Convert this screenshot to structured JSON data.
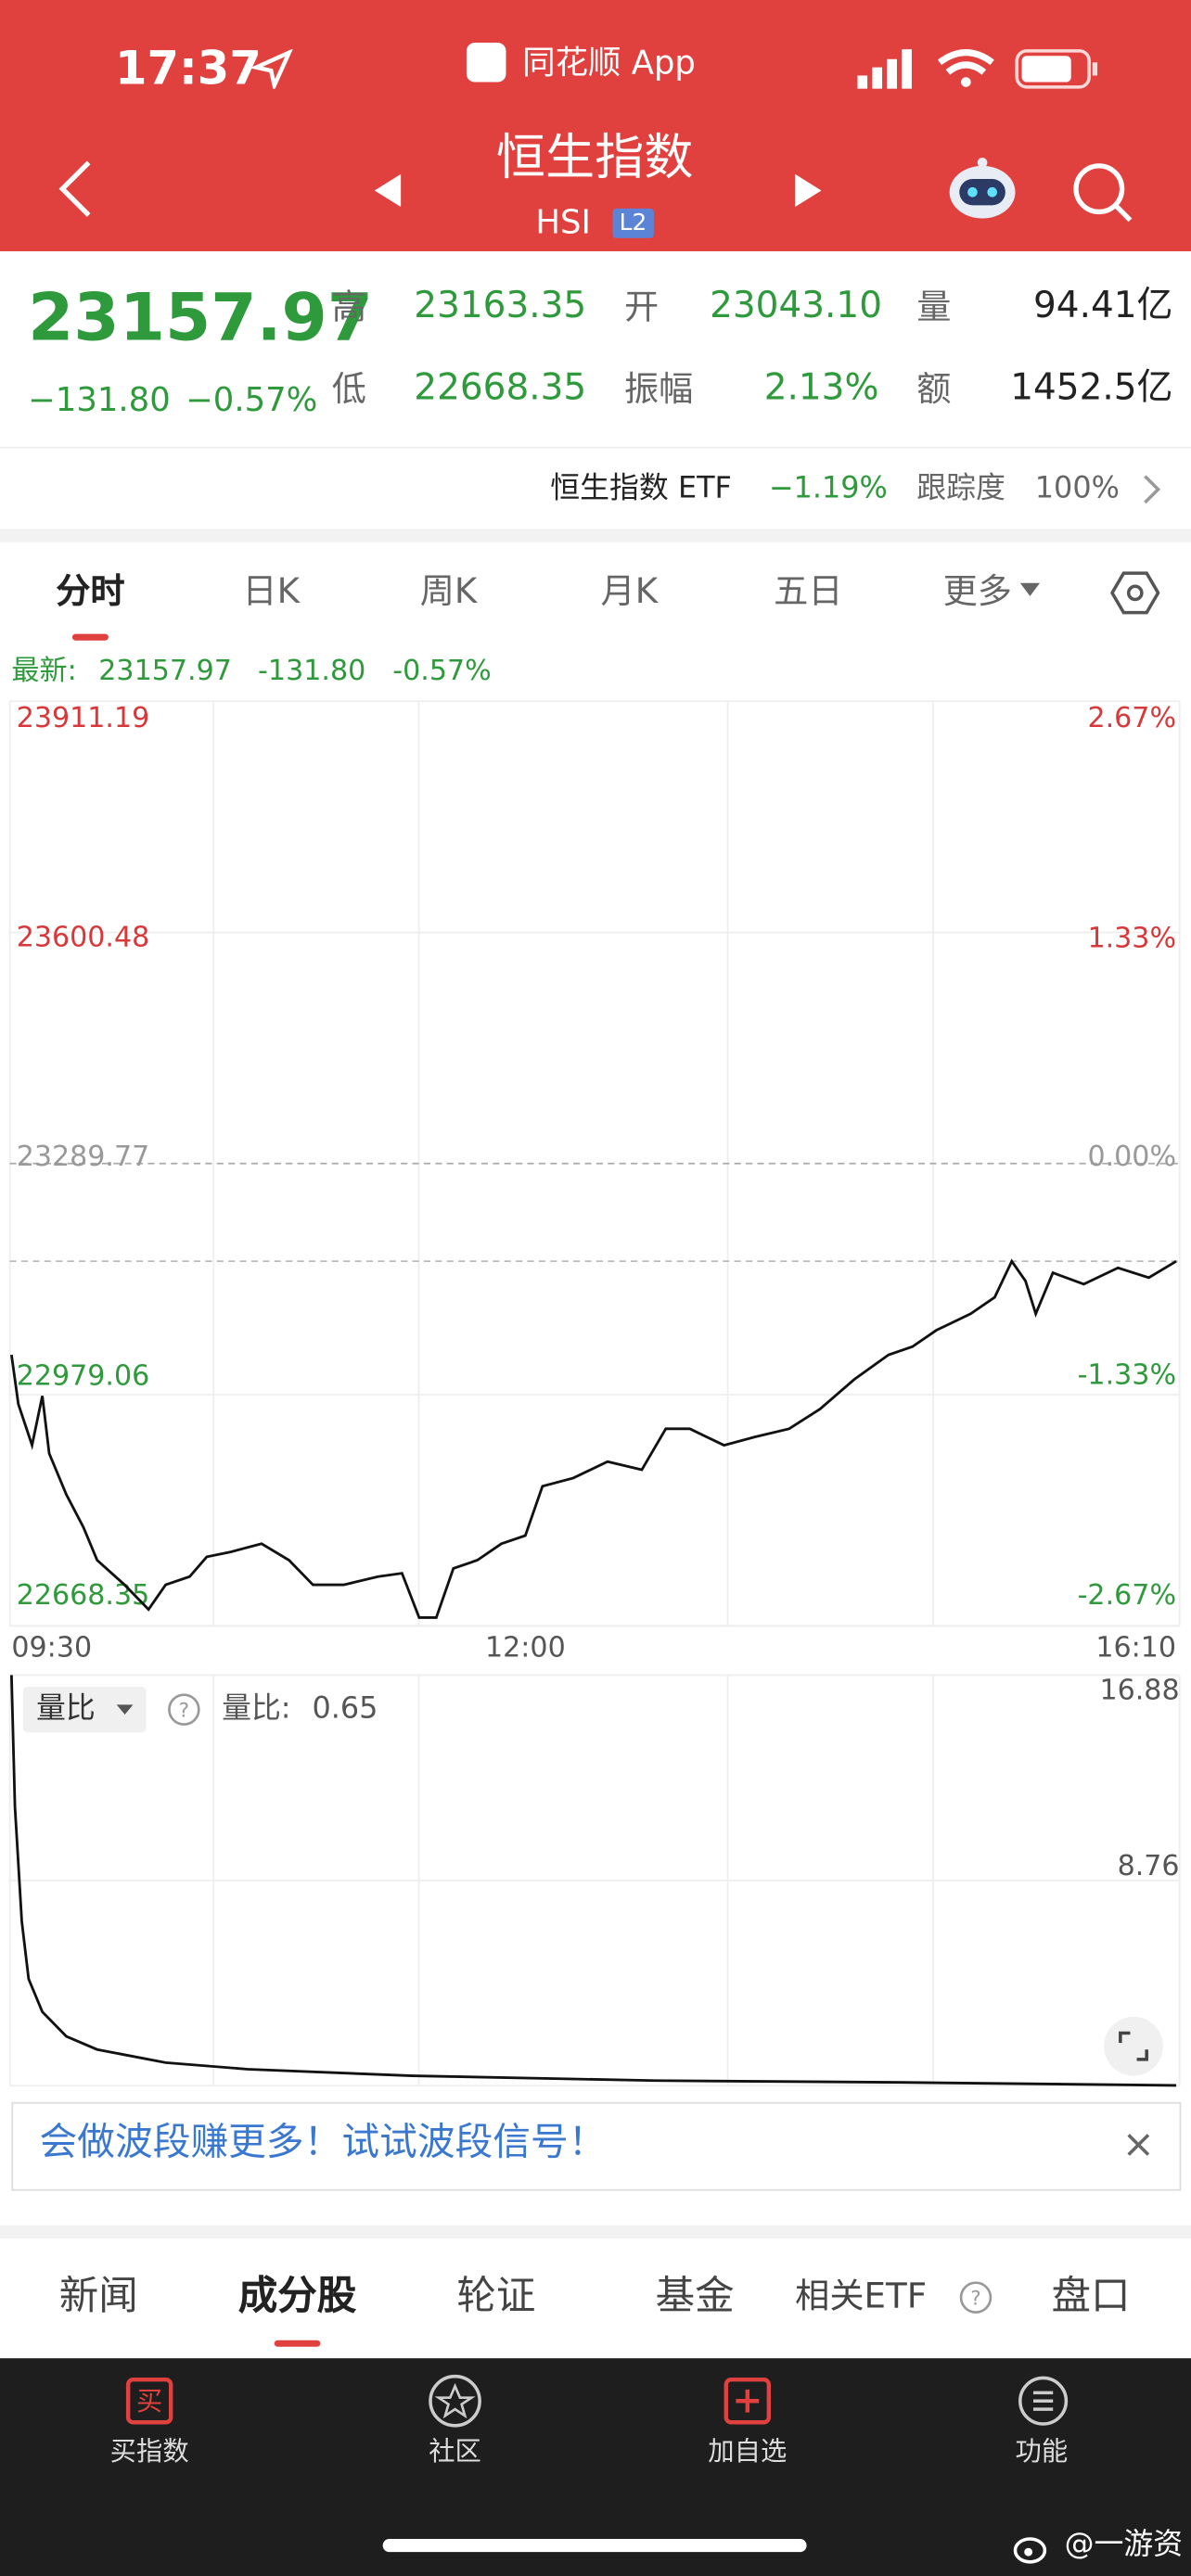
{
  "status_bar": {
    "time": "17:37",
    "app": "同花顺 App"
  },
  "header": {
    "title": "恒生指数",
    "code": "HSI",
    "level": "L2"
  },
  "quote": {
    "price": "23157.97",
    "change": "−131.80",
    "change_pct": "−0.57%",
    "stats": [
      {
        "label": "高",
        "value": "23163.35"
      },
      {
        "label": "开",
        "value": "23043.10"
      },
      {
        "label": "量",
        "value": "94.41亿"
      },
      {
        "label": "低",
        "value": "22668.35"
      },
      {
        "label": "振幅",
        "value": "2.13%"
      },
      {
        "label": "额",
        "value": "1452.5亿"
      }
    ]
  },
  "etf": {
    "name": "恒生指数 ETF",
    "change": "−1.19%",
    "tracking_label": "跟踪度",
    "tracking": "100%"
  },
  "tabs": [
    "分时",
    "日K",
    "周K",
    "月K",
    "五日",
    "更多"
  ],
  "latest": {
    "label": "最新:",
    "price": "23157.97",
    "change": "-131.80",
    "change_pct": "-0.57%"
  },
  "chart_data": [
    {
      "type": "line",
      "color": "#111111",
      "x": [
        0,
        2,
        6,
        9,
        11,
        16,
        21,
        25,
        33,
        40,
        45,
        52,
        57,
        64,
        73,
        81,
        88,
        97,
        107,
        114,
        119,
        124,
        129,
        136,
        143,
        150,
        155,
        164,
        174,
        184,
        191,
        198,
        208,
        217,
        227,
        236,
        246,
        256,
        263,
        270,
        280,
        287,
        292,
        296,
        299,
        304,
        313,
        323,
        332,
        340
      ],
      "values": [
        23032.6,
        22966.4,
        22911.1,
        22977.4,
        22900.1,
        22844.9,
        22800.8,
        22756.6,
        22723.5,
        22690.4,
        22723.5,
        22734.5,
        22761.1,
        22767.7,
        22778.7,
        22756.6,
        22723.5,
        22723.5,
        22734.5,
        22739.0,
        22679.4,
        22679.4,
        22745.6,
        22756.6,
        22778.7,
        22789.7,
        22856.0,
        22867.0,
        22889.1,
        22878.1,
        22933.2,
        22933.2,
        22911.1,
        22922.2,
        22933.2,
        22959.7,
        22999.5,
        23032.6,
        23043.6,
        23065.7,
        23087.8,
        23109.9,
        23158.4,
        23131.9,
        23087.8,
        23143.0,
        23127.6,
        23149.6,
        23136.4,
        23158.4
      ],
      "xlim": [
        0,
        340
      ],
      "xticks": [
        {
          "value": 0,
          "label": "09:30"
        },
        {
          "value": 150,
          "label": "12:00"
        },
        {
          "value": 340,
          "label": "16:10"
        }
      ],
      "ylim": [
        22668.35,
        23911.19
      ],
      "yticks": [
        22668.35,
        22979.06,
        23289.77,
        23600.48,
        23911.19
      ],
      "y2lim": [
        -2.67,
        2.67
      ],
      "y2ticks": [
        {
          "value": -2.67,
          "label": "-2.67%"
        },
        {
          "value": -1.33,
          "label": "-1.33%"
        },
        {
          "value": 0,
          "label": "0.00%"
        },
        {
          "value": 1.33,
          "label": "1.33%"
        },
        {
          "value": 2.67,
          "label": "2.67%"
        }
      ]
    },
    {
      "type": "line",
      "color": "#111111",
      "x": [
        0,
        1,
        3,
        5,
        9,
        16,
        25,
        45,
        69,
        117,
        188,
        260,
        340
      ],
      "values": [
        16.88,
        11.68,
        7.14,
        4.86,
        3.56,
        2.59,
        2.07,
        1.55,
        1.29,
        1.03,
        0.84,
        0.77,
        0.65
      ],
      "xlim": [
        0,
        340
      ],
      "ylim": [
        0.64,
        16.88
      ],
      "yticks": [
        8.76,
        16.88
      ]
    }
  ],
  "indicator": {
    "name": "量比",
    "label": "量比:",
    "value": "0.65"
  },
  "banner": "会做波段赚更多！试试波段信号！",
  "bottom_tabs": [
    "新闻",
    "成分股",
    "轮证",
    "基金",
    "相关ETF",
    "盘口"
  ],
  "nav": [
    "买指数",
    "社区",
    "加自选",
    "功能"
  ],
  "watermark": "@一游资"
}
